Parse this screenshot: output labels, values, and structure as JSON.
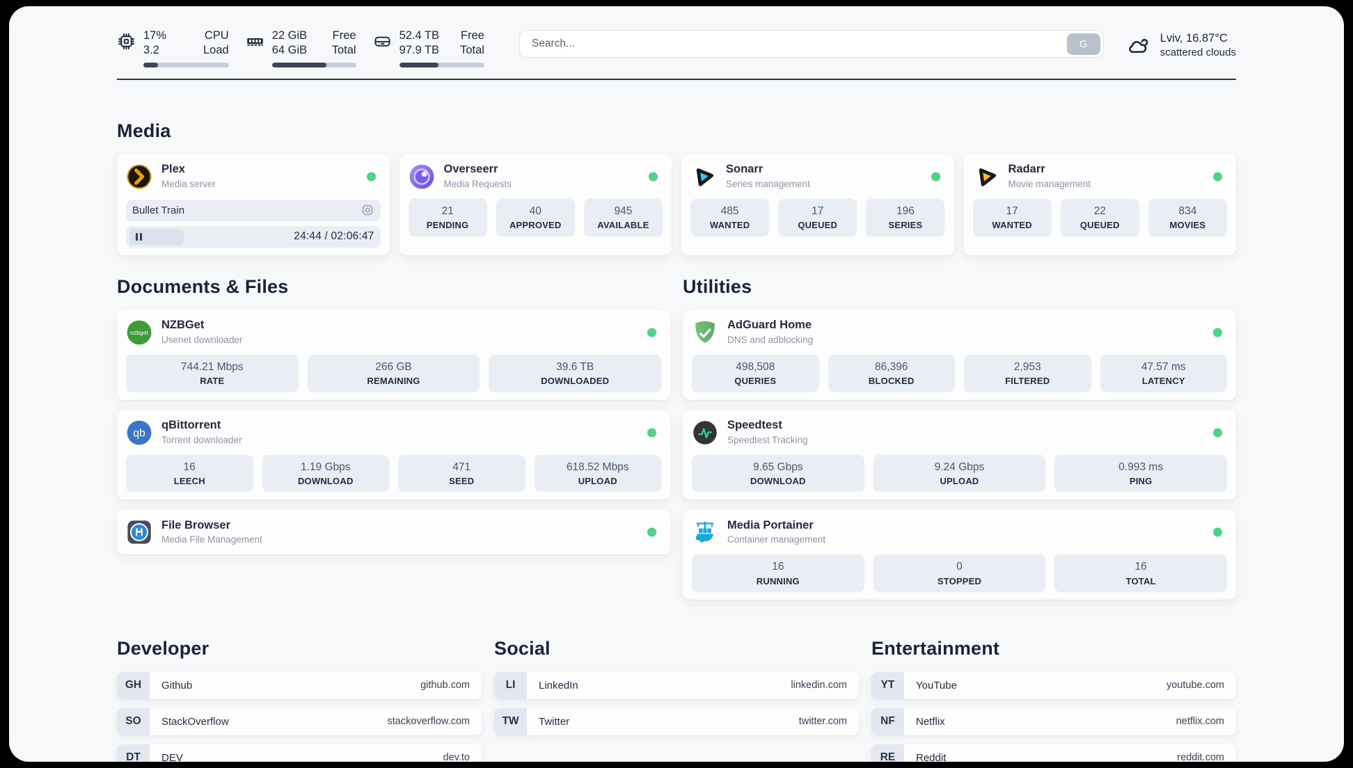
{
  "colors": {
    "status_online": "#4fd384",
    "progress_fill": "#3c4456"
  },
  "header": {
    "system_stats": [
      {
        "icon": "cpu-icon",
        "value_top": "17%",
        "value_bottom": "3.2",
        "label_top": "CPU",
        "label_bottom": "Load",
        "progress_percent": 17
      },
      {
        "icon": "ram-icon",
        "value_top": "22 GiB",
        "value_bottom": "64 GiB",
        "label_top": "Free",
        "label_bottom": "Total",
        "progress_percent": 65
      },
      {
        "icon": "disk-icon",
        "value_top": "52.4 TB",
        "value_bottom": "97.9 TB",
        "label_top": "Free",
        "label_bottom": "Total",
        "progress_percent": 46
      }
    ],
    "search": {
      "placeholder": "Search...",
      "button_label": "G"
    },
    "weather": {
      "location": "Lviv, 16.87°C",
      "condition": "scattered clouds"
    }
  },
  "sections": {
    "media": {
      "title": "Media",
      "apps": [
        {
          "name": "Plex",
          "subtitle": "Media server",
          "online": true,
          "player": {
            "title": "Bullet Train",
            "time": "24:44 / 02:06:47"
          }
        },
        {
          "name": "Overseerr",
          "subtitle": "Media Requests",
          "online": true,
          "stats": [
            {
              "value": "21",
              "label": "PENDING"
            },
            {
              "value": "40",
              "label": "APPROVED"
            },
            {
              "value": "945",
              "label": "AVAILABLE"
            }
          ]
        },
        {
          "name": "Sonarr",
          "subtitle": "Series management",
          "online": true,
          "stats": [
            {
              "value": "485",
              "label": "WANTED"
            },
            {
              "value": "17",
              "label": "QUEUED"
            },
            {
              "value": "196",
              "label": "SERIES"
            }
          ]
        },
        {
          "name": "Radarr",
          "subtitle": "Movie management",
          "online": true,
          "stats": [
            {
              "value": "17",
              "label": "WANTED"
            },
            {
              "value": "22",
              "label": "QUEUED"
            },
            {
              "value": "834",
              "label": "MOVIES"
            }
          ]
        }
      ]
    },
    "documents": {
      "title": "Documents & Files",
      "apps": [
        {
          "name": "NZBGet",
          "subtitle": "Usenet downloader",
          "online": true,
          "icon_text": "nzbget",
          "stats": [
            {
              "value": "744.21 Mbps",
              "label": "RATE"
            },
            {
              "value": "266 GB",
              "label": "REMAINING"
            },
            {
              "value": "39.6 TB",
              "label": "DOWNLOADED"
            }
          ]
        },
        {
          "name": "qBittorrent",
          "subtitle": "Torrent downloader",
          "online": true,
          "icon_text": "qb",
          "stats": [
            {
              "value": "16",
              "label": "LEECH"
            },
            {
              "value": "1.19 Gbps",
              "label": "DOWNLOAD"
            },
            {
              "value": "471",
              "label": "SEED"
            },
            {
              "value": "618.52 Mbps",
              "label": "UPLOAD"
            }
          ]
        },
        {
          "name": "File Browser",
          "subtitle": "Media File Management",
          "online": true
        }
      ]
    },
    "utilities": {
      "title": "Utilities",
      "apps": [
        {
          "name": "AdGuard Home",
          "subtitle": "DNS and adblocking",
          "online": true,
          "stats": [
            {
              "value": "498,508",
              "label": "QUERIES"
            },
            {
              "value": "86,396",
              "label": "BLOCKED"
            },
            {
              "value": "2,953",
              "label": "FILTERED"
            },
            {
              "value": "47.57 ms",
              "label": "LATENCY"
            }
          ]
        },
        {
          "name": "Speedtest",
          "subtitle": "Speedtest Tracking",
          "online": true,
          "stats": [
            {
              "value": "9.65 Gbps",
              "label": "DOWNLOAD"
            },
            {
              "value": "9.24 Gbps",
              "label": "UPLOAD"
            },
            {
              "value": "0.993 ms",
              "label": "PING"
            }
          ]
        },
        {
          "name": "Media Portainer",
          "subtitle": "Container management",
          "online": true,
          "stats": [
            {
              "value": "16",
              "label": "RUNNING"
            },
            {
              "value": "0",
              "label": "STOPPED"
            },
            {
              "value": "16",
              "label": "TOTAL"
            }
          ]
        }
      ]
    }
  },
  "bookmarks": [
    {
      "title": "Developer",
      "links": [
        {
          "abbr": "GH",
          "name": "Github",
          "url": "github.com"
        },
        {
          "abbr": "SO",
          "name": "StackOverflow",
          "url": "stackoverflow.com"
        },
        {
          "abbr": "DT",
          "name": "DEV",
          "url": "dev.to"
        }
      ]
    },
    {
      "title": "Social",
      "links": [
        {
          "abbr": "LI",
          "name": "LinkedIn",
          "url": "linkedin.com"
        },
        {
          "abbr": "TW",
          "name": "Twitter",
          "url": "twitter.com"
        }
      ]
    },
    {
      "title": "Entertainment",
      "links": [
        {
          "abbr": "YT",
          "name": "YouTube",
          "url": "youtube.com"
        },
        {
          "abbr": "NF",
          "name": "Netflix",
          "url": "netflix.com"
        },
        {
          "abbr": "RE",
          "name": "Reddit",
          "url": "reddit.com"
        }
      ]
    }
  ]
}
